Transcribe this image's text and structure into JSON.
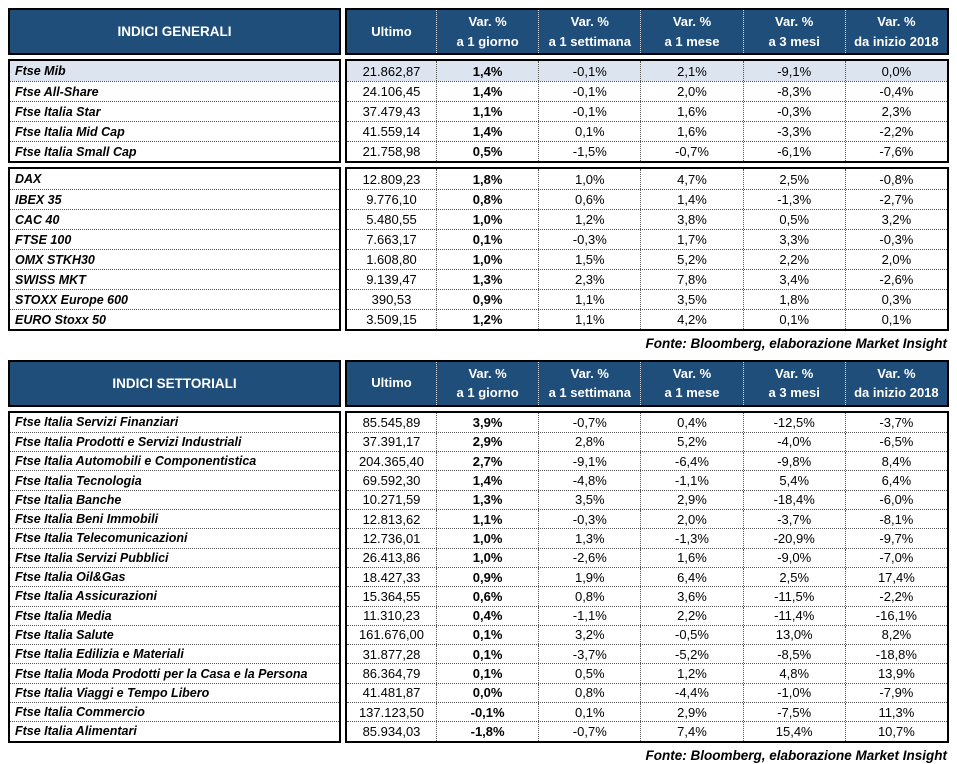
{
  "colors": {
    "header_bg": "#1F4E7A",
    "highlight_row": "#DCE4F0",
    "border": "#000000"
  },
  "columns": [
    {
      "line1": "Ultimo",
      "line2": ""
    },
    {
      "line1": "Var. %",
      "line2": "a 1 giorno"
    },
    {
      "line1": "Var. %",
      "line2": "a 1 settimana"
    },
    {
      "line1": "Var. %",
      "line2": "a 1 mese"
    },
    {
      "line1": "Var. %",
      "line2": "a 3 mesi"
    },
    {
      "line1": "Var. %",
      "line2": "da inizio 2018"
    }
  ],
  "table1": {
    "title": "INDICI GENERALI",
    "fonte": "Fonte: Bloomberg, elaborazione Market Insight",
    "groups": [
      {
        "rows": [
          {
            "label": "Ftse Mib",
            "values": [
              "21.862,87",
              "1,4%",
              "-0,1%",
              "2,1%",
              "-9,1%",
              "0,0%"
            ],
            "highlight": true
          },
          {
            "label": "Ftse All-Share",
            "values": [
              "24.106,45",
              "1,4%",
              "-0,1%",
              "2,0%",
              "-8,3%",
              "-0,4%"
            ]
          },
          {
            "label": "Ftse Italia Star",
            "values": [
              "37.479,43",
              "1,1%",
              "-0,1%",
              "1,6%",
              "-0,3%",
              "2,3%"
            ]
          },
          {
            "label": "Ftse Italia Mid Cap",
            "values": [
              "41.559,14",
              "1,4%",
              "0,1%",
              "1,6%",
              "-3,3%",
              "-2,2%"
            ]
          },
          {
            "label": "Ftse Italia Small Cap",
            "values": [
              "21.758,98",
              "0,5%",
              "-1,5%",
              "-0,7%",
              "-6,1%",
              "-7,6%"
            ]
          }
        ]
      },
      {
        "rows": [
          {
            "label": "DAX",
            "values": [
              "12.809,23",
              "1,8%",
              "1,0%",
              "4,7%",
              "2,5%",
              "-0,8%"
            ]
          },
          {
            "label": "IBEX 35",
            "values": [
              "9.776,10",
              "0,8%",
              "0,6%",
              "1,4%",
              "-1,3%",
              "-2,7%"
            ]
          },
          {
            "label": "CAC 40",
            "values": [
              "5.480,55",
              "1,0%",
              "1,2%",
              "3,8%",
              "0,5%",
              "3,2%"
            ]
          },
          {
            "label": "FTSE 100",
            "values": [
              "7.663,17",
              "0,1%",
              "-0,3%",
              "1,7%",
              "3,3%",
              "-0,3%"
            ]
          },
          {
            "label": "OMX STKH30",
            "values": [
              "1.608,80",
              "1,0%",
              "1,5%",
              "5,2%",
              "2,2%",
              "2,0%"
            ]
          },
          {
            "label": "SWISS MKT",
            "values": [
              "9.139,47",
              "1,3%",
              "2,3%",
              "7,8%",
              "3,4%",
              "-2,6%"
            ]
          },
          {
            "label": "STOXX Europe 600",
            "values": [
              "390,53",
              "0,9%",
              "1,1%",
              "3,5%",
              "1,8%",
              "0,3%"
            ]
          },
          {
            "label": "EURO Stoxx 50",
            "values": [
              "3.509,15",
              "1,2%",
              "1,1%",
              "4,2%",
              "0,1%",
              "0,1%"
            ]
          }
        ]
      }
    ]
  },
  "table2": {
    "title": "INDICI SETTORIALI",
    "fonte": "Fonte: Bloomberg, elaborazione Market Insight",
    "groups": [
      {
        "rows": [
          {
            "label": "Ftse Italia Servizi Finanziari",
            "values": [
              "85.545,89",
              "3,9%",
              "-0,7%",
              "0,4%",
              "-12,5%",
              "-3,7%"
            ]
          },
          {
            "label": "Ftse Italia Prodotti e Servizi Industriali",
            "values": [
              "37.391,17",
              "2,9%",
              "2,8%",
              "5,2%",
              "-4,0%",
              "-6,5%"
            ]
          },
          {
            "label": "Ftse Italia Automobili e Componentistica",
            "values": [
              "204.365,40",
              "2,7%",
              "-9,1%",
              "-6,4%",
              "-9,8%",
              "8,4%"
            ]
          },
          {
            "label": "Ftse Italia Tecnologia",
            "values": [
              "69.592,30",
              "1,4%",
              "-4,8%",
              "-1,1%",
              "5,4%",
              "6,4%"
            ]
          },
          {
            "label": "Ftse Italia Banche",
            "values": [
              "10.271,59",
              "1,3%",
              "3,5%",
              "2,9%",
              "-18,4%",
              "-6,0%"
            ]
          },
          {
            "label": "Ftse Italia Beni Immobili",
            "values": [
              "12.813,62",
              "1,1%",
              "-0,3%",
              "2,0%",
              "-3,7%",
              "-8,1%"
            ]
          },
          {
            "label": "Ftse Italia Telecomunicazioni",
            "values": [
              "12.736,01",
              "1,0%",
              "1,3%",
              "-1,3%",
              "-20,9%",
              "-9,7%"
            ]
          },
          {
            "label": "Ftse Italia Servizi Pubblici",
            "values": [
              "26.413,86",
              "1,0%",
              "-2,6%",
              "1,6%",
              "-9,0%",
              "-7,0%"
            ]
          },
          {
            "label": "Ftse Italia Oil&Gas",
            "values": [
              "18.427,33",
              "0,9%",
              "1,9%",
              "6,4%",
              "2,5%",
              "17,4%"
            ]
          },
          {
            "label": "Ftse Italia Assicurazioni",
            "values": [
              "15.364,55",
              "0,6%",
              "0,8%",
              "3,6%",
              "-11,5%",
              "-2,2%"
            ]
          },
          {
            "label": "Ftse Italia Media",
            "values": [
              "11.310,23",
              "0,4%",
              "-1,1%",
              "2,2%",
              "-11,4%",
              "-16,1%"
            ]
          },
          {
            "label": "Ftse Italia Salute",
            "values": [
              "161.676,00",
              "0,1%",
              "3,2%",
              "-0,5%",
              "13,0%",
              "8,2%"
            ]
          },
          {
            "label": "Ftse Italia Edilizia e Materiali",
            "values": [
              "31.877,28",
              "0,1%",
              "-3,7%",
              "-5,2%",
              "-8,5%",
              "-18,8%"
            ]
          },
          {
            "label": "Ftse Italia Moda Prodotti per la Casa e la Persona",
            "values": [
              "86.364,79",
              "0,1%",
              "0,5%",
              "1,2%",
              "4,8%",
              "13,9%"
            ]
          },
          {
            "label": "Ftse Italia Viaggi e Tempo Libero",
            "values": [
              "41.481,87",
              "0,0%",
              "0,8%",
              "-4,4%",
              "-1,0%",
              "-7,9%"
            ]
          },
          {
            "label": "Ftse Italia Commercio",
            "values": [
              "137.123,50",
              "-0,1%",
              "0,1%",
              "2,9%",
              "-7,5%",
              "11,3%"
            ]
          },
          {
            "label": "Ftse Italia Alimentari",
            "values": [
              "85.934,03",
              "-1,8%",
              "-0,7%",
              "7,4%",
              "15,4%",
              "10,7%"
            ]
          }
        ]
      }
    ]
  }
}
